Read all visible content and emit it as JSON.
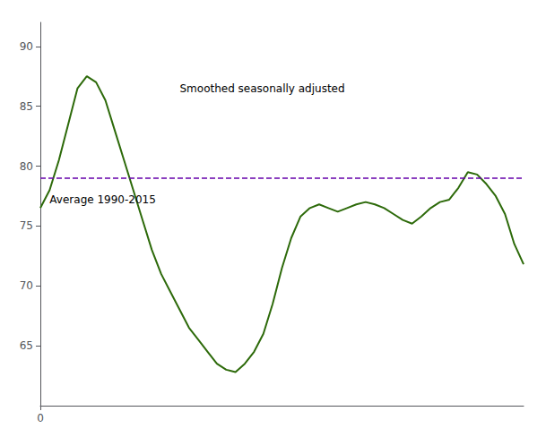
{
  "chart_data": {
    "type": "line",
    "x": [
      0,
      0.5,
      1.0,
      1.5,
      2.0,
      2.5,
      3.0,
      3.5,
      4.0,
      4.5,
      5.0,
      5.5,
      6.0,
      6.5,
      7.0,
      7.5,
      8.0,
      8.5,
      9.0,
      9.5,
      10.0,
      10.5,
      11.0,
      11.5,
      12.0,
      12.5,
      13.0,
      13.5,
      14.0,
      14.5,
      15.0,
      15.5,
      16.0,
      16.5,
      17.0,
      17.5,
      18.0,
      18.5,
      19.0,
      19.5,
      20.0,
      20.5,
      21.0,
      21.5,
      22.0,
      22.5,
      23.0,
      23.5,
      24.0,
      24.5,
      25.0,
      25.5,
      26.0
    ],
    "values": [
      76.5,
      78.0,
      80.5,
      83.5,
      86.5,
      87.5,
      87.0,
      85.5,
      83.0,
      80.5,
      78.0,
      75.5,
      73.0,
      71.0,
      69.5,
      68.0,
      66.5,
      65.5,
      64.5,
      63.5,
      63.0,
      62.8,
      63.5,
      64.5,
      66.0,
      68.5,
      71.5,
      74.0,
      75.8,
      76.5,
      76.8,
      76.5,
      76.2,
      76.5,
      76.8,
      77.0,
      76.8,
      76.5,
      76.0,
      75.5,
      75.2,
      75.8,
      76.5,
      77.0,
      77.2,
      78.2,
      79.5,
      79.3,
      78.5,
      77.5,
      76.0,
      73.5,
      71.8
    ],
    "color": "#2d6a0a",
    "xlim": [
      0,
      26
    ],
    "ylim": [
      60,
      92
    ],
    "xticks": [
      0
    ],
    "yticks": [
      65,
      70,
      75,
      80,
      85,
      90
    ],
    "grid": false,
    "reference_line": {
      "value": 79.0,
      "color": "#6600aa",
      "line_style": "dashed"
    },
    "annotations": [
      {
        "text": "Smoothed seasonally adjusted",
        "x": 7.5,
        "y": 86.5
      },
      {
        "text": "Average 1990-2015",
        "x": 0.5,
        "y": 77.2
      }
    ]
  }
}
